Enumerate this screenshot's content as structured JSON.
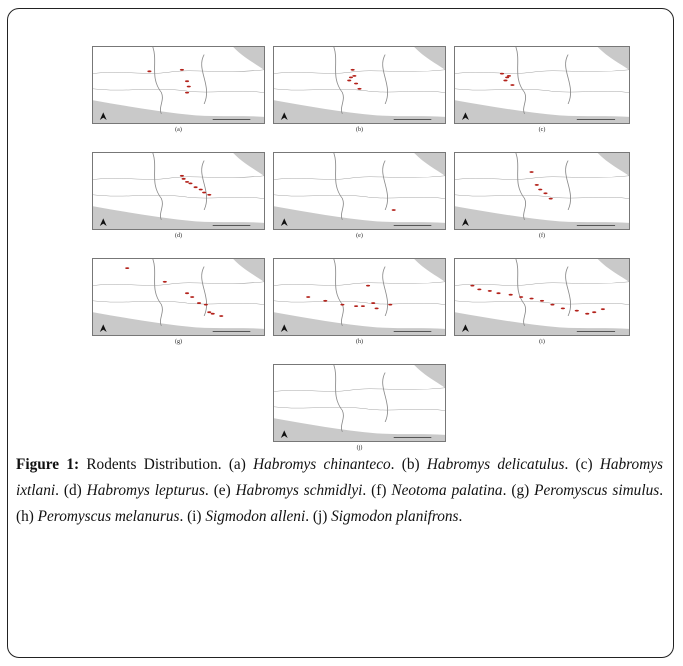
{
  "figure": {
    "panels": [
      {
        "id": "a",
        "label": "(a)"
      },
      {
        "id": "b",
        "label": "(b)"
      },
      {
        "id": "c",
        "label": "(c)"
      },
      {
        "id": "d",
        "label": "(d)"
      },
      {
        "id": "e",
        "label": "(e)"
      },
      {
        "id": "f",
        "label": "(f)"
      },
      {
        "id": "g",
        "label": "(g)"
      },
      {
        "id": "h",
        "label": "(h)"
      },
      {
        "id": "i",
        "label": "(i)"
      },
      {
        "id": "j",
        "label": "(j)"
      }
    ]
  },
  "caption": {
    "lead": "Figure 1:",
    "intro": " Rodents Distribution.",
    "items": [
      {
        "tag": " (a) ",
        "species": "Habromys chinanteco"
      },
      {
        "tag": ". (b) ",
        "species": "Habromys delicatulus"
      },
      {
        "tag": ". (c) ",
        "species": "Habromys ixtlani"
      },
      {
        "tag": ". (d) ",
        "species": "Habromys lepturus"
      },
      {
        "tag": ". (e) ",
        "species": "Habromys schmidlyi"
      },
      {
        "tag": ". (f) ",
        "species": "Neotoma palatina"
      },
      {
        "tag": ". (g) ",
        "species": "Peromyscus simulus"
      },
      {
        "tag": ". (h) ",
        "species": "Peromyscus melanurus"
      },
      {
        "tag": ". (i) ",
        "species": "Sigmodon alleni"
      },
      {
        "tag": ". (j) ",
        "species": "Sigmodon planifrons"
      }
    ],
    "end": "."
  },
  "colors": {
    "occurrence": "#b3221b",
    "sea": "#c9c9c9",
    "border": "#8a8a8a"
  }
}
